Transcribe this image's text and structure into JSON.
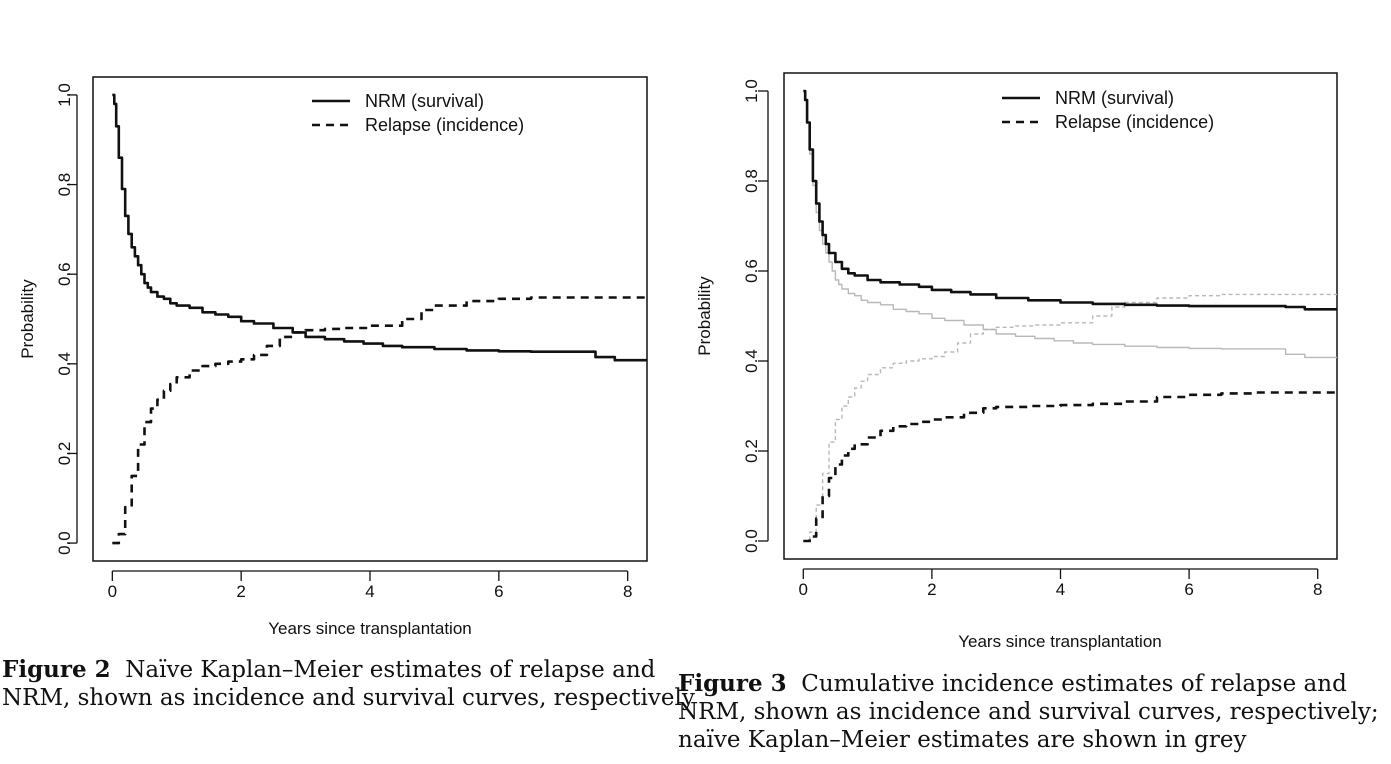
{
  "chart_data": [
    {
      "type": "line",
      "step": true,
      "xlabel": "Years since transplantation",
      "ylabel": "Probability",
      "xlim": [
        -0.3,
        8.3
      ],
      "ylim": [
        -0.04,
        1.04
      ],
      "xticks": [
        "0",
        "2",
        "4",
        "6",
        "8"
      ],
      "yticks": [
        "0.0",
        "0.2",
        "0.4",
        "0.6",
        "0.8",
        "1.0"
      ],
      "legend": [
        "NRM (survival)",
        "Relapse (incidence)"
      ],
      "legend_position": "top-right",
      "series": [
        {
          "name": "NRM (survival)",
          "style": "solid",
          "color": "#111111",
          "x": [
            0,
            0.03,
            0.06,
            0.1,
            0.15,
            0.2,
            0.25,
            0.3,
            0.35,
            0.4,
            0.45,
            0.5,
            0.55,
            0.6,
            0.7,
            0.8,
            0.9,
            1.0,
            1.2,
            1.4,
            1.6,
            1.8,
            2.0,
            2.2,
            2.5,
            2.8,
            3.0,
            3.3,
            3.6,
            3.9,
            4.2,
            4.5,
            5.0,
            5.5,
            6.0,
            6.5,
            7.0,
            7.5,
            7.8,
            8.3
          ],
          "y": [
            1.0,
            0.98,
            0.93,
            0.86,
            0.79,
            0.73,
            0.69,
            0.66,
            0.64,
            0.62,
            0.6,
            0.58,
            0.57,
            0.56,
            0.55,
            0.545,
            0.535,
            0.53,
            0.525,
            0.515,
            0.51,
            0.505,
            0.495,
            0.49,
            0.48,
            0.47,
            0.46,
            0.455,
            0.45,
            0.445,
            0.44,
            0.437,
            0.433,
            0.43,
            0.428,
            0.427,
            0.427,
            0.415,
            0.408,
            0.408
          ]
        },
        {
          "name": "Relapse (incidence)",
          "style": "dashed",
          "color": "#111111",
          "x": [
            0,
            0.1,
            0.2,
            0.3,
            0.4,
            0.5,
            0.6,
            0.7,
            0.8,
            0.9,
            1.0,
            1.2,
            1.4,
            1.6,
            1.8,
            2.0,
            2.2,
            2.4,
            2.6,
            2.8,
            3.0,
            3.3,
            3.6,
            4.0,
            4.5,
            4.8,
            5.0,
            5.5,
            6.0,
            6.5,
            7.0,
            7.5,
            8.3
          ],
          "y": [
            0.0,
            0.02,
            0.08,
            0.15,
            0.22,
            0.27,
            0.3,
            0.32,
            0.34,
            0.355,
            0.37,
            0.385,
            0.395,
            0.4,
            0.405,
            0.41,
            0.42,
            0.44,
            0.46,
            0.47,
            0.475,
            0.478,
            0.48,
            0.485,
            0.5,
            0.52,
            0.53,
            0.54,
            0.545,
            0.548,
            0.548,
            0.548,
            0.548
          ]
        }
      ]
    },
    {
      "type": "line",
      "step": true,
      "xlabel": "Years since transplantation",
      "ylabel": "Probability",
      "xlim": [
        -0.3,
        8.3
      ],
      "ylim": [
        -0.04,
        1.04
      ],
      "xticks": [
        "0",
        "2",
        "4",
        "6",
        "8"
      ],
      "yticks": [
        "0.0",
        "0.2",
        "0.4",
        "0.6",
        "0.8",
        "1.0"
      ],
      "legend": [
        "NRM (survival)",
        "Relapse (incidence)"
      ],
      "legend_position": "top-right",
      "series": [
        {
          "name": "Naive KM NRM (grey)",
          "style": "solid",
          "color": "#b8b8b8",
          "x": [
            0,
            0.03,
            0.06,
            0.1,
            0.15,
            0.2,
            0.25,
            0.3,
            0.35,
            0.4,
            0.45,
            0.5,
            0.55,
            0.6,
            0.7,
            0.8,
            0.9,
            1.0,
            1.2,
            1.4,
            1.6,
            1.8,
            2.0,
            2.2,
            2.5,
            2.8,
            3.0,
            3.3,
            3.6,
            3.9,
            4.2,
            4.5,
            5.0,
            5.5,
            6.0,
            6.5,
            7.0,
            7.5,
            7.8,
            8.3
          ],
          "y": [
            1.0,
            0.98,
            0.93,
            0.86,
            0.79,
            0.73,
            0.69,
            0.66,
            0.64,
            0.62,
            0.6,
            0.58,
            0.57,
            0.56,
            0.55,
            0.545,
            0.535,
            0.53,
            0.525,
            0.515,
            0.51,
            0.505,
            0.495,
            0.49,
            0.48,
            0.47,
            0.46,
            0.455,
            0.45,
            0.445,
            0.44,
            0.437,
            0.433,
            0.43,
            0.428,
            0.427,
            0.427,
            0.415,
            0.408,
            0.408
          ]
        },
        {
          "name": "Naive KM Relapse (grey)",
          "style": "dashed",
          "color": "#b8b8b8",
          "x": [
            0,
            0.1,
            0.2,
            0.3,
            0.4,
            0.5,
            0.6,
            0.7,
            0.8,
            0.9,
            1.0,
            1.2,
            1.4,
            1.6,
            1.8,
            2.0,
            2.2,
            2.4,
            2.6,
            2.8,
            3.0,
            3.3,
            3.6,
            4.0,
            4.5,
            4.8,
            5.0,
            5.5,
            6.0,
            6.5,
            7.0,
            7.5,
            8.3
          ],
          "y": [
            0.0,
            0.02,
            0.08,
            0.15,
            0.22,
            0.27,
            0.3,
            0.32,
            0.34,
            0.355,
            0.37,
            0.385,
            0.395,
            0.4,
            0.405,
            0.41,
            0.42,
            0.44,
            0.46,
            0.47,
            0.475,
            0.478,
            0.48,
            0.485,
            0.5,
            0.52,
            0.53,
            0.54,
            0.545,
            0.548,
            0.548,
            0.548,
            0.548
          ]
        },
        {
          "name": "NRM (survival)",
          "style": "solid",
          "color": "#111111",
          "x": [
            0,
            0.03,
            0.06,
            0.1,
            0.15,
            0.2,
            0.25,
            0.3,
            0.35,
            0.4,
            0.5,
            0.6,
            0.7,
            0.8,
            1.0,
            1.2,
            1.5,
            1.8,
            2.0,
            2.3,
            2.6,
            3.0,
            3.5,
            4.0,
            4.5,
            5.0,
            5.5,
            6.0,
            6.5,
            7.0,
            7.5,
            7.8,
            8.3
          ],
          "y": [
            1.0,
            0.98,
            0.93,
            0.87,
            0.8,
            0.75,
            0.71,
            0.68,
            0.66,
            0.64,
            0.62,
            0.605,
            0.595,
            0.59,
            0.58,
            0.575,
            0.57,
            0.565,
            0.558,
            0.553,
            0.548,
            0.54,
            0.535,
            0.53,
            0.527,
            0.525,
            0.523,
            0.522,
            0.522,
            0.522,
            0.52,
            0.515,
            0.515
          ]
        },
        {
          "name": "Relapse (incidence)",
          "style": "dashed",
          "color": "#111111",
          "x": [
            0,
            0.1,
            0.2,
            0.3,
            0.4,
            0.5,
            0.6,
            0.7,
            0.8,
            1.0,
            1.2,
            1.4,
            1.6,
            1.8,
            2.0,
            2.2,
            2.5,
            2.8,
            3.0,
            3.5,
            4.0,
            4.5,
            5.0,
            5.5,
            6.0,
            6.5,
            7.0,
            8.3
          ],
          "y": [
            0.0,
            0.01,
            0.05,
            0.1,
            0.14,
            0.17,
            0.19,
            0.205,
            0.215,
            0.23,
            0.245,
            0.255,
            0.26,
            0.265,
            0.27,
            0.275,
            0.285,
            0.295,
            0.298,
            0.3,
            0.302,
            0.305,
            0.31,
            0.32,
            0.325,
            0.328,
            0.33,
            0.33
          ]
        }
      ]
    }
  ],
  "captions": [
    {
      "label": "Figure 2",
      "line1": "Naïve Kaplan–Meier estimates of relapse and",
      "line2": "NRM, shown as incidence and survival curves, respectively"
    },
    {
      "label": "Figure 3",
      "line1": "Cumulative incidence estimates of relapse and",
      "line2": "NRM, shown as incidence and survival curves, respectively;",
      "line3": "naïve Kaplan–Meier estimates are shown in grey"
    }
  ]
}
